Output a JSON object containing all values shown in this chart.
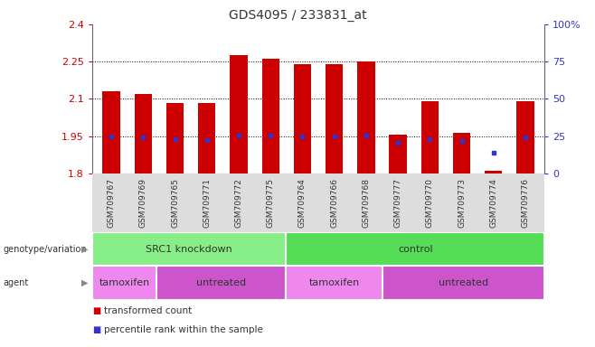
{
  "title": "GDS4095 / 233831_at",
  "samples": [
    "GSM709767",
    "GSM709769",
    "GSM709765",
    "GSM709771",
    "GSM709772",
    "GSM709775",
    "GSM709764",
    "GSM709766",
    "GSM709768",
    "GSM709777",
    "GSM709770",
    "GSM709773",
    "GSM709774",
    "GSM709776"
  ],
  "bar_tops": [
    2.13,
    2.12,
    2.085,
    2.085,
    2.275,
    2.26,
    2.24,
    2.24,
    2.25,
    1.955,
    2.09,
    1.965,
    1.81,
    2.09
  ],
  "bar_bottom": 1.8,
  "blue_vals": [
    1.948,
    1.947,
    1.937,
    1.936,
    1.953,
    1.953,
    1.948,
    1.948,
    1.952,
    1.925,
    1.938,
    1.932,
    1.882,
    1.946
  ],
  "ylim_left": [
    1.8,
    2.4
  ],
  "ylim_right": [
    0,
    100
  ],
  "yticks_left": [
    1.8,
    1.95,
    2.1,
    2.25,
    2.4
  ],
  "ytick_labels_left": [
    "1.8",
    "1.95",
    "2.1",
    "2.25",
    "2.4"
  ],
  "yticks_right": [
    0,
    25,
    50,
    75,
    100
  ],
  "ytick_labels_right": [
    "0",
    "25",
    "50",
    "75",
    "100%"
  ],
  "bar_color": "#cc0000",
  "blue_color": "#3333cc",
  "bg_color": "#ffffff",
  "left_axis_color": "#cc0000",
  "right_axis_color": "#3333cc",
  "xtick_bg": "#dddddd",
  "genotype_groups": [
    {
      "label": "SRC1 knockdown",
      "start": 0,
      "end": 5,
      "color": "#88ee88"
    },
    {
      "label": "control",
      "start": 6,
      "end": 13,
      "color": "#55dd55"
    }
  ],
  "agent_groups": [
    {
      "label": "tamoxifen",
      "start": 0,
      "end": 1,
      "color": "#ee88ee"
    },
    {
      "label": "untreated",
      "start": 2,
      "end": 5,
      "color": "#cc55cc"
    },
    {
      "label": "tamoxifen",
      "start": 6,
      "end": 8,
      "color": "#ee88ee"
    },
    {
      "label": "untreated",
      "start": 9,
      "end": 13,
      "color": "#cc55cc"
    }
  ],
  "legend_items": [
    {
      "label": "transformed count",
      "color": "#cc0000"
    },
    {
      "label": "percentile rank within the sample",
      "color": "#3333cc"
    }
  ],
  "grid_yticks": [
    1.95,
    2.1,
    2.25
  ]
}
